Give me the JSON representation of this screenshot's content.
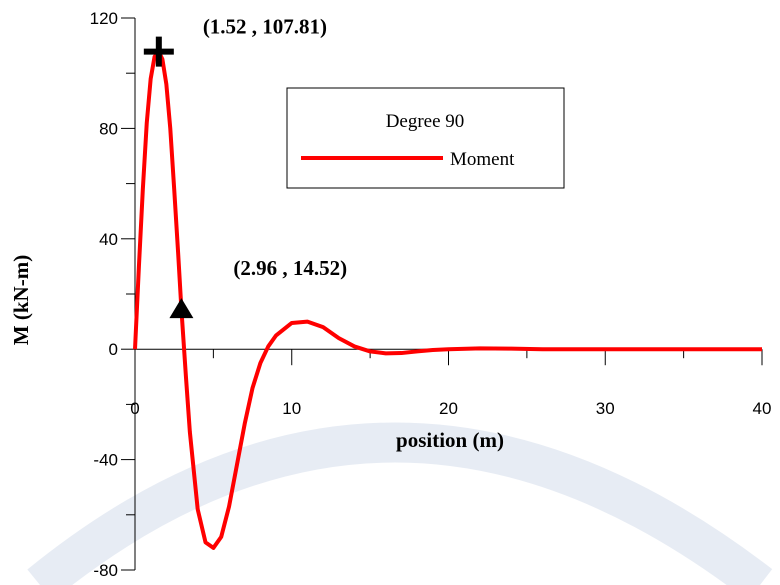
{
  "chart_data": {
    "type": "line",
    "x_label": "position (m)",
    "y_label": "M (kN-m)",
    "xlim": [
      0,
      40
    ],
    "ylim": [
      -80,
      120
    ],
    "xticks": [
      0,
      10,
      20,
      30,
      40
    ],
    "yticks": [
      -80,
      -40,
      0,
      40,
      80,
      120
    ],
    "x_minor_ticks": [
      5,
      15,
      25,
      35
    ],
    "y_minor_ticks": [
      -60,
      -20,
      20,
      60,
      100
    ],
    "legend_title": "Degree 90",
    "x": [
      0,
      0.25,
      0.5,
      0.75,
      1,
      1.25,
      1.52,
      1.75,
      2,
      2.25,
      2.5,
      2.75,
      2.96,
      3.25,
      3.5,
      4,
      4.5,
      5,
      5.5,
      6,
      6.5,
      7,
      7.5,
      8,
      8.5,
      9,
      10,
      11,
      12,
      13,
      14,
      15,
      16,
      17,
      18,
      19,
      20,
      22,
      24,
      26,
      28,
      30,
      35,
      40
    ],
    "series": [
      {
        "name": "Moment",
        "color": "#ff0000",
        "values": [
          0,
          30,
          58,
          82,
          98,
          106,
          107.81,
          105,
          96,
          80,
          58,
          35,
          14.52,
          -10,
          -30,
          -58,
          -70,
          -72,
          -68,
          -57,
          -42,
          -27,
          -14,
          -5,
          1,
          5,
          9.5,
          10,
          8,
          4,
          1,
          -0.8,
          -1.5,
          -1.4,
          -0.8,
          -0.3,
          0,
          0.3,
          0.2,
          0,
          0,
          0,
          0,
          0
        ]
      }
    ],
    "markers": [
      {
        "x": 1.52,
        "y": 107.81,
        "label": "(1.52 , 107.81)",
        "shape": "plus"
      },
      {
        "x": 2.96,
        "y": 14.52,
        "label": "(2.96 , 14.52)",
        "shape": "triangle"
      }
    ]
  }
}
